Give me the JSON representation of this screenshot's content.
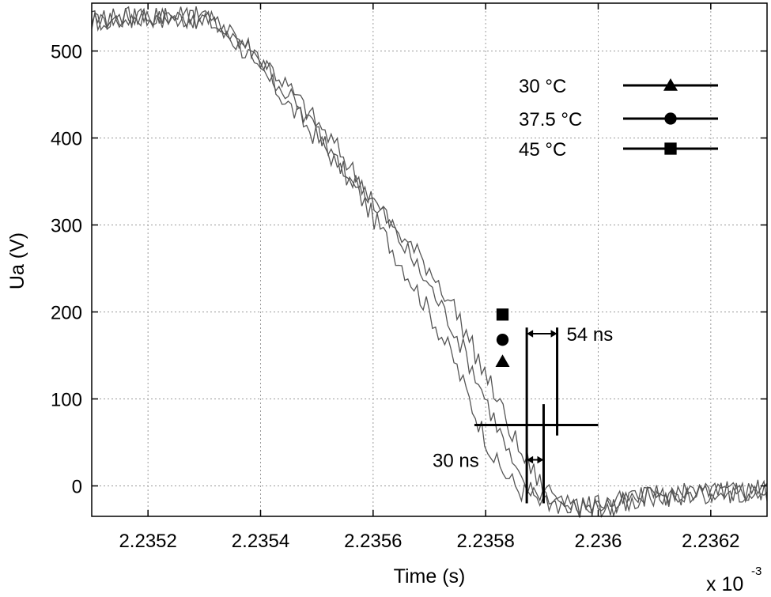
{
  "chart_data": {
    "type": "line",
    "title": "",
    "xlabel": "Time (s)",
    "ylabel": "Ua (V)",
    "x_multiplier": "x 10",
    "x_multiplier_exp": "-3",
    "xlim": [
      2.2351,
      2.2363
    ],
    "ylim": [
      -35,
      555
    ],
    "xticks": [
      2.2352,
      2.2354,
      2.2356,
      2.2358,
      2.236,
      2.2362
    ],
    "xtick_labels": [
      "2.2352",
      "2.2354",
      "2.2356",
      "2.2358",
      "2.236",
      "2.2362"
    ],
    "yticks": [
      0,
      100,
      200,
      300,
      400,
      500
    ],
    "ytick_labels": [
      "0",
      "100",
      "200",
      "300",
      "400",
      "500"
    ],
    "grid": true,
    "legend_position": "top-right",
    "series": [
      {
        "name": "30 °C",
        "marker": "triangle",
        "x": [
          2.2351,
          2.2352,
          2.2353,
          2.23534,
          2.23538,
          2.23542,
          2.23546,
          2.2355,
          2.23554,
          2.23558,
          2.23562,
          2.23566,
          2.2357,
          2.23574,
          2.23578,
          2.23582,
          2.23586,
          2.2359,
          2.23594,
          2.23598,
          2.23602,
          2.2361,
          2.2362,
          2.2363
        ],
        "y": [
          535,
          540,
          538,
          520,
          495,
          462,
          430,
          400,
          368,
          330,
          288,
          245,
          200,
          150,
          85,
          25,
          -5,
          -15,
          -22,
          -25,
          -22,
          -12,
          -8,
          -5
        ]
      },
      {
        "name": "37.5 °C",
        "marker": "circle",
        "x": [
          2.2351,
          2.2352,
          2.2353,
          2.23534,
          2.23538,
          2.23542,
          2.23546,
          2.2355,
          2.23554,
          2.23558,
          2.23562,
          2.23566,
          2.2357,
          2.23574,
          2.23578,
          2.23582,
          2.23586,
          2.2359,
          2.23594,
          2.23598,
          2.23602,
          2.2361,
          2.2362,
          2.2363
        ],
        "y": [
          535,
          540,
          538,
          525,
          505,
          480,
          450,
          418,
          385,
          348,
          310,
          270,
          230,
          185,
          130,
          70,
          5,
          -15,
          -22,
          -25,
          -20,
          -12,
          -8,
          -5
        ]
      },
      {
        "name": "45 °C",
        "marker": "square",
        "x": [
          2.2351,
          2.2352,
          2.2353,
          2.23534,
          2.23538,
          2.23542,
          2.23546,
          2.2355,
          2.23554,
          2.23558,
          2.23562,
          2.23566,
          2.2357,
          2.23574,
          2.23578,
          2.23582,
          2.23586,
          2.2359,
          2.23594,
          2.23598,
          2.23602,
          2.2361,
          2.2362,
          2.2363
        ],
        "y": [
          535,
          540,
          538,
          522,
          500,
          472,
          440,
          408,
          375,
          342,
          310,
          280,
          250,
          210,
          155,
          100,
          40,
          0,
          -18,
          -25,
          -22,
          -12,
          -8,
          -5
        ]
      }
    ],
    "markers": [
      {
        "shape": "triangle",
        "x": 2.23583,
        "y": 143
      },
      {
        "shape": "circle",
        "x": 2.23583,
        "y": 168
      },
      {
        "shape": "square",
        "x": 2.23583,
        "y": 197
      }
    ],
    "annotations": [
      {
        "text": "54 ns",
        "x_start": 2.235873,
        "x_end": 2.235927,
        "y": 175
      },
      {
        "text": "30 ns",
        "x_start": 2.235873,
        "x_end": 2.235903,
        "y": 30
      }
    ],
    "reference": {
      "y": 70,
      "x_start": 2.23578,
      "x_end": 2.236
    }
  }
}
